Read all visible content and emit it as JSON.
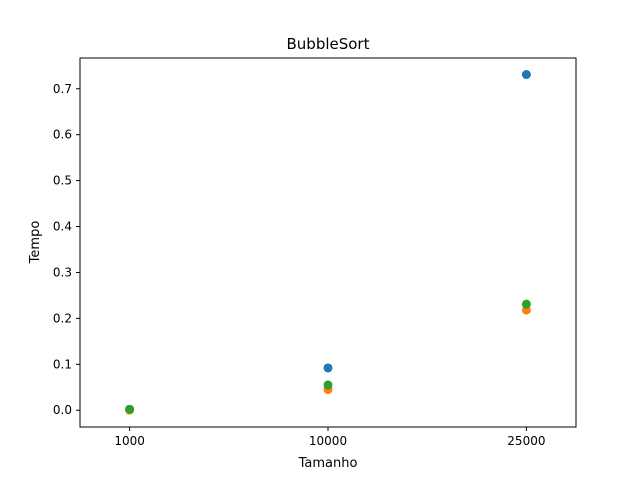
{
  "chart_data": {
    "type": "scatter",
    "title": "BubbleSort",
    "xlabel": "Tamanho",
    "ylabel": "Tempo",
    "x_scale": "categorical",
    "x_tick_labels": [
      "1000",
      "10000",
      "25000"
    ],
    "y_ticks": [
      0.0,
      0.1,
      0.2,
      0.3,
      0.4,
      0.5,
      0.6,
      0.7
    ],
    "y_tick_labels": [
      "0.0",
      "0.1",
      "0.2",
      "0.3",
      "0.4",
      "0.5",
      "0.6",
      "0.7"
    ],
    "ylim": [
      -0.0365,
      0.767
    ],
    "grid": false,
    "legend": "none",
    "series": [
      {
        "color": "#1f77b4",
        "x": [
          "1000",
          "10000",
          "25000"
        ],
        "y": [
          0.002,
          0.092,
          0.731
        ]
      },
      {
        "color": "#ff7f0e",
        "x": [
          "1000",
          "10000",
          "25000"
        ],
        "y": [
          0.0005,
          0.045,
          0.218
        ]
      },
      {
        "color": "#2ca02c",
        "x": [
          "1000",
          "10000",
          "25000"
        ],
        "y": [
          0.002,
          0.055,
          0.231
        ]
      }
    ]
  }
}
